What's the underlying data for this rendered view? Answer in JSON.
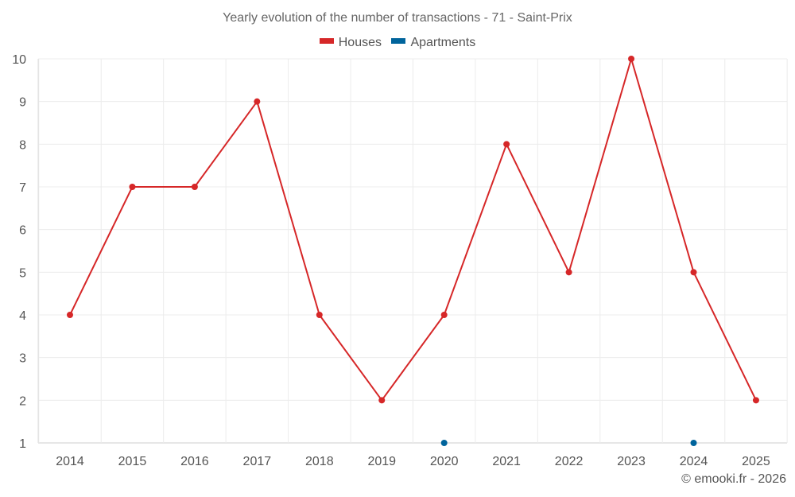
{
  "chart_data": {
    "type": "line",
    "title": "Yearly evolution of the number of transactions - 71 - Saint-Prix",
    "categories": [
      "2014",
      "2015",
      "2016",
      "2017",
      "2018",
      "2019",
      "2020",
      "2021",
      "2022",
      "2023",
      "2024",
      "2025"
    ],
    "series": [
      {
        "name": "Houses",
        "color": "#d62728",
        "values": [
          4,
          7,
          7,
          9,
          4,
          2,
          4,
          8,
          5,
          10,
          5,
          2
        ]
      },
      {
        "name": "Apartments",
        "color": "#00649c",
        "values": [
          null,
          null,
          null,
          null,
          null,
          null,
          1,
          null,
          null,
          null,
          1,
          null
        ]
      }
    ],
    "ylim": [
      1,
      10
    ],
    "yticks": [
      "1",
      "2",
      "3",
      "4",
      "5",
      "6",
      "7",
      "8",
      "9",
      "10"
    ],
    "grid": true,
    "legend": "top-center"
  },
  "credit": "© emooki.fr - 2026"
}
